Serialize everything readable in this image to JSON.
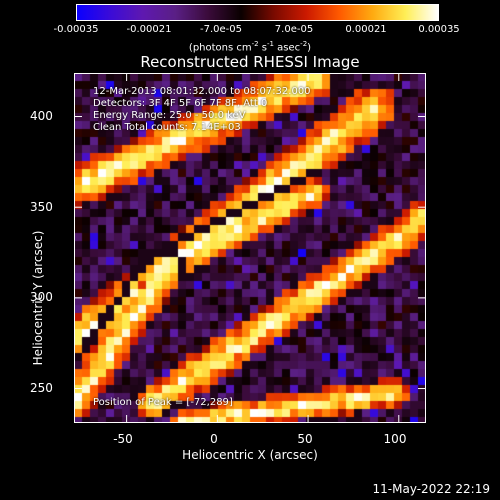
{
  "colorbar": {
    "ticks": [
      "-0.00035",
      "-0.00021",
      "-7.0e-05",
      "7.0e-05",
      "0.00021",
      "0.00035"
    ],
    "units_prefix": "(photons cm",
    "units_exp1": "-2",
    "units_mid1": " s",
    "units_exp2": "-1",
    "units_mid2": " asec",
    "units_exp3": "-2",
    "units_suffix": ")"
  },
  "title": "Reconstructed RHESSI Image",
  "info": {
    "line1": "12-Mar-2013 08:01:32.000 to 08:07:32.000",
    "line2": "Detectors: 3F 4F 5F 6F 7F 8F, Att 0",
    "line3": "Energy Range: 25.0 - 50.0 keV",
    "line4": "Clean     Total counts: 7.14E+03",
    "peak": "Position of Peak = [-72,289]"
  },
  "axes": {
    "xlabel": "Heliocentric X (arcsec)",
    "ylabel": "Heliocentric Y (arcsec)",
    "xticks": [
      "-50",
      "0",
      "50",
      "100"
    ],
    "yticks": [
      "400",
      "350",
      "300",
      "250"
    ],
    "xlim": [
      -79,
      115
    ],
    "ylim": [
      231,
      424
    ],
    "xtick_values": [
      -50,
      0,
      50,
      100
    ],
    "ytick_values": [
      400,
      350,
      300,
      250
    ]
  },
  "timestamp": "11-May-2022 22:19",
  "colors": {
    "colormap": [
      "#0a00ff",
      "#3a0bd8",
      "#5e18b0",
      "#5a1f85",
      "#3a0b3a",
      "#0a0000",
      "#7a0a00",
      "#cc1a00",
      "#ff5a00",
      "#ffaa10",
      "#ffee55",
      "#ffffff"
    ]
  }
}
